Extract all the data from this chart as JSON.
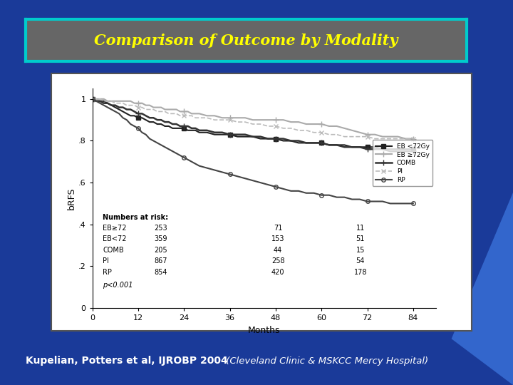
{
  "background_color": "#1a3a99",
  "title_text": "Comparison of Outcome by Modality",
  "title_color": "#ffff00",
  "title_bg_color": "#666666",
  "title_border_color": "#00cccc",
  "subtitle_bold": "Kupelian, Potters et al, IJROBP 2004",
  "subtitle_italic": " (Cleveland Clinic & MSKCC Mercy Hospital)",
  "subtitle_color": "#ffffff",
  "chart_bg": "#ffffff",
  "chart_border": "#555555",
  "xlabel": "Months",
  "ylabel": "bRFS",
  "xmax": 90,
  "ytick_labels": [
    "0",
    ".2",
    ".4",
    ".6",
    ".8",
    "1"
  ],
  "ytick_vals": [
    0.0,
    0.2,
    0.4,
    0.6,
    0.8,
    1.0
  ],
  "xticks": [
    0,
    12,
    24,
    36,
    48,
    60,
    72,
    84
  ],
  "legend_entries": [
    "EB <72Gy",
    "EB ≥72Gy",
    "COMB",
    "PI",
    "RP"
  ],
  "numbers_at_risk": {
    "header": "Numbers at risk:",
    "rows": [
      [
        "EB≥72",
        "253",
        "71",
        "11"
      ],
      [
        "EB<72",
        "359",
        "153",
        "51"
      ],
      [
        "COMB",
        "205",
        "44",
        "15"
      ],
      [
        "PI",
        "867",
        "258",
        "54"
      ],
      [
        "RP",
        "854",
        "420",
        "178"
      ]
    ]
  },
  "pvalue": "p<0.001",
  "curves": {
    "EB_lt72": {
      "x": [
        0,
        1,
        2,
        3,
        4,
        5,
        6,
        7,
        8,
        9,
        10,
        11,
        12,
        13,
        14,
        15,
        16,
        17,
        18,
        19,
        20,
        21,
        22,
        23,
        24,
        25,
        26,
        27,
        28,
        30,
        32,
        34,
        36,
        38,
        40,
        42,
        44,
        46,
        48,
        50,
        52,
        54,
        56,
        58,
        60,
        62,
        64,
        66,
        68,
        70,
        72,
        74,
        76,
        78,
        80,
        82,
        84
      ],
      "y": [
        1.0,
        0.99,
        0.99,
        0.99,
        0.98,
        0.97,
        0.96,
        0.95,
        0.94,
        0.93,
        0.92,
        0.92,
        0.91,
        0.91,
        0.9,
        0.89,
        0.89,
        0.88,
        0.88,
        0.87,
        0.87,
        0.86,
        0.86,
        0.86,
        0.86,
        0.85,
        0.85,
        0.85,
        0.84,
        0.84,
        0.83,
        0.83,
        0.83,
        0.82,
        0.82,
        0.82,
        0.81,
        0.81,
        0.81,
        0.8,
        0.8,
        0.79,
        0.79,
        0.79,
        0.79,
        0.78,
        0.78,
        0.78,
        0.77,
        0.77,
        0.77,
        0.77,
        0.76,
        0.76,
        0.76,
        0.76,
        0.76
      ],
      "color": "#222222",
      "marker": "s",
      "linestyle": "-",
      "linewidth": 1.5,
      "markersize": 4
    },
    "EB_ge72": {
      "x": [
        0,
        1,
        2,
        3,
        4,
        5,
        6,
        7,
        8,
        9,
        10,
        11,
        12,
        13,
        14,
        15,
        16,
        17,
        18,
        19,
        20,
        21,
        22,
        23,
        24,
        25,
        26,
        27,
        28,
        30,
        32,
        34,
        36,
        38,
        40,
        42,
        44,
        46,
        48,
        50,
        52,
        54,
        56,
        58,
        60,
        62,
        64,
        66,
        68,
        70,
        72,
        74,
        76,
        78,
        80,
        82,
        84
      ],
      "y": [
        1.0,
        1.0,
        1.0,
        1.0,
        0.99,
        0.99,
        0.99,
        0.99,
        0.99,
        0.99,
        0.99,
        0.98,
        0.98,
        0.98,
        0.97,
        0.97,
        0.96,
        0.96,
        0.96,
        0.95,
        0.95,
        0.95,
        0.95,
        0.94,
        0.94,
        0.94,
        0.93,
        0.93,
        0.93,
        0.92,
        0.92,
        0.91,
        0.91,
        0.91,
        0.91,
        0.9,
        0.9,
        0.9,
        0.9,
        0.9,
        0.89,
        0.89,
        0.88,
        0.88,
        0.88,
        0.87,
        0.87,
        0.86,
        0.85,
        0.84,
        0.83,
        0.83,
        0.82,
        0.82,
        0.82,
        0.81,
        0.81
      ],
      "color": "#aaaaaa",
      "marker": "+",
      "linestyle": "-",
      "linewidth": 1.5,
      "markersize": 6
    },
    "COMB": {
      "x": [
        0,
        1,
        2,
        3,
        4,
        5,
        6,
        7,
        8,
        9,
        10,
        11,
        12,
        13,
        14,
        15,
        16,
        17,
        18,
        19,
        20,
        21,
        22,
        23,
        24,
        25,
        26,
        27,
        28,
        30,
        32,
        34,
        36,
        38,
        40,
        42,
        44,
        46,
        48,
        50,
        52,
        54,
        56,
        58,
        60,
        62,
        64,
        66,
        68,
        70,
        72,
        74,
        76,
        78,
        80,
        82,
        84
      ],
      "y": [
        1.0,
        0.99,
        0.99,
        0.98,
        0.98,
        0.97,
        0.97,
        0.96,
        0.96,
        0.95,
        0.95,
        0.94,
        0.93,
        0.93,
        0.92,
        0.91,
        0.91,
        0.9,
        0.9,
        0.89,
        0.89,
        0.88,
        0.88,
        0.87,
        0.87,
        0.87,
        0.86,
        0.86,
        0.85,
        0.85,
        0.84,
        0.84,
        0.83,
        0.83,
        0.83,
        0.82,
        0.82,
        0.81,
        0.81,
        0.81,
        0.8,
        0.8,
        0.79,
        0.79,
        0.79,
        0.78,
        0.78,
        0.77,
        0.77,
        0.77,
        0.76,
        0.76,
        0.76,
        0.75,
        0.75,
        0.75,
        0.75
      ],
      "color": "#333333",
      "marker": "+",
      "linestyle": "-",
      "linewidth": 1.8,
      "markersize": 6
    },
    "PI": {
      "x": [
        0,
        1,
        2,
        3,
        4,
        5,
        6,
        7,
        8,
        9,
        10,
        11,
        12,
        13,
        14,
        15,
        16,
        17,
        18,
        19,
        20,
        21,
        22,
        23,
        24,
        25,
        26,
        27,
        28,
        30,
        32,
        34,
        36,
        38,
        40,
        42,
        44,
        46,
        48,
        50,
        52,
        54,
        56,
        58,
        60,
        62,
        64,
        66,
        68,
        70,
        72,
        74,
        76,
        78,
        80,
        82,
        84
      ],
      "y": [
        1.0,
        1.0,
        1.0,
        0.99,
        0.99,
        0.99,
        0.98,
        0.98,
        0.98,
        0.97,
        0.97,
        0.97,
        0.96,
        0.96,
        0.95,
        0.95,
        0.95,
        0.94,
        0.94,
        0.94,
        0.93,
        0.93,
        0.93,
        0.92,
        0.92,
        0.92,
        0.92,
        0.91,
        0.91,
        0.91,
        0.9,
        0.9,
        0.9,
        0.89,
        0.89,
        0.88,
        0.88,
        0.87,
        0.87,
        0.86,
        0.86,
        0.85,
        0.85,
        0.84,
        0.84,
        0.83,
        0.83,
        0.82,
        0.82,
        0.82,
        0.82,
        0.81,
        0.81,
        0.81,
        0.81,
        0.81,
        0.81
      ],
      "color": "#bbbbbb",
      "marker": "x",
      "linestyle": "--",
      "linewidth": 1.2,
      "markersize": 4
    },
    "RP": {
      "x": [
        0,
        1,
        2,
        3,
        4,
        5,
        6,
        7,
        8,
        9,
        10,
        11,
        12,
        13,
        14,
        15,
        16,
        17,
        18,
        19,
        20,
        21,
        22,
        23,
        24,
        25,
        26,
        27,
        28,
        30,
        32,
        34,
        36,
        38,
        40,
        42,
        44,
        46,
        48,
        50,
        52,
        54,
        56,
        58,
        60,
        62,
        64,
        66,
        68,
        70,
        72,
        74,
        76,
        78,
        80,
        82,
        84
      ],
      "y": [
        1.0,
        0.99,
        0.98,
        0.97,
        0.96,
        0.95,
        0.94,
        0.93,
        0.91,
        0.9,
        0.88,
        0.87,
        0.86,
        0.84,
        0.83,
        0.81,
        0.8,
        0.79,
        0.78,
        0.77,
        0.76,
        0.75,
        0.74,
        0.73,
        0.72,
        0.71,
        0.7,
        0.69,
        0.68,
        0.67,
        0.66,
        0.65,
        0.64,
        0.63,
        0.62,
        0.61,
        0.6,
        0.59,
        0.58,
        0.57,
        0.56,
        0.56,
        0.55,
        0.55,
        0.54,
        0.54,
        0.53,
        0.53,
        0.52,
        0.52,
        0.51,
        0.51,
        0.51,
        0.5,
        0.5,
        0.5,
        0.5
      ],
      "color": "#444444",
      "marker": "o",
      "linestyle": "-",
      "linewidth": 1.5,
      "markersize": 4
    }
  }
}
